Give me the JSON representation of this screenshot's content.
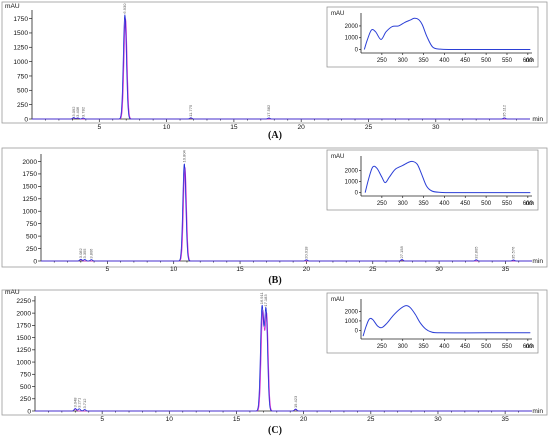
{
  "chart_data": [
    {
      "type": "line",
      "caption": "(A)",
      "ylabel": "mAU",
      "xlabel": "min",
      "xlim": [
        0,
        37
      ],
      "ylim": [
        0,
        1900
      ],
      "x_ticks": [
        5,
        10,
        15,
        20,
        25,
        30
      ],
      "y_ticks": [
        0,
        250,
        500,
        750,
        1000,
        1250,
        1500,
        1750
      ],
      "series": [
        {
          "color": "#1f2bd6",
          "peaks": [
            [
              3.1,
              25
            ],
            [
              3.4,
              20
            ],
            [
              3.8,
              18
            ],
            [
              6.9,
              1820
            ],
            [
              11.8,
              22
            ],
            [
              17.6,
              18
            ],
            [
              35.1,
              20
            ]
          ]
        },
        {
          "color": "#d22ad2",
          "peaks": [
            [
              3.1,
              20
            ],
            [
              3.4,
              15
            ],
            [
              6.95,
              1750
            ],
            [
              11.8,
              15
            ]
          ]
        }
      ],
      "peak_labels": [
        {
          "x": 3.1,
          "text": "3.092"
        },
        {
          "x": 3.4,
          "text": "3.406"
        },
        {
          "x": 3.8,
          "text": "3.782"
        },
        {
          "x": 6.9,
          "text": "6.930"
        },
        {
          "x": 11.8,
          "text": "11.775"
        },
        {
          "x": 17.6,
          "text": "17.582"
        },
        {
          "x": 35.1,
          "text": "35.112"
        }
      ],
      "inset": {
        "ylabel": "mAU",
        "xlabel": "nm",
        "xlim": [
          200,
          610
        ],
        "ylim": [
          -300,
          3100
        ],
        "x_ticks": [
          250,
          300,
          350,
          400,
          450,
          500,
          550,
          600
        ],
        "y_ticks": [
          0,
          1000,
          2000
        ],
        "spectrum": [
          [
            208,
            0
          ],
          [
            215,
            800
          ],
          [
            225,
            1650
          ],
          [
            235,
            1500
          ],
          [
            248,
            850
          ],
          [
            260,
            1500
          ],
          [
            275,
            1950
          ],
          [
            290,
            2000
          ],
          [
            305,
            2300
          ],
          [
            318,
            2500
          ],
          [
            328,
            2650
          ],
          [
            338,
            2550
          ],
          [
            347,
            2100
          ],
          [
            358,
            1100
          ],
          [
            372,
            200
          ],
          [
            390,
            30
          ],
          [
            420,
            0
          ],
          [
            500,
            0
          ],
          [
            606,
            0
          ]
        ]
      }
    },
    {
      "type": "line",
      "caption": "(B)",
      "ylabel": "",
      "xlabel": "min",
      "xlim": [
        0,
        37
      ],
      "ylim": [
        0,
        2150
      ],
      "x_ticks": [
        5,
        10,
        15,
        20,
        25,
        30,
        35
      ],
      "y_ticks": [
        0,
        250,
        500,
        750,
        1000,
        1250,
        1500,
        1750,
        2000
      ],
      "series": [
        {
          "color": "#1f2bd6",
          "peaks": [
            [
              3.0,
              35
            ],
            [
              3.3,
              30
            ],
            [
              3.8,
              28
            ],
            [
              10.8,
              1960
            ],
            [
              20.0,
              25
            ],
            [
              27.2,
              30
            ],
            [
              32.8,
              25
            ],
            [
              35.6,
              22
            ]
          ]
        },
        {
          "color": "#d22ad2",
          "peaks": [
            [
              3.0,
              25
            ],
            [
              10.85,
              1880
            ],
            [
              27.2,
              20
            ]
          ]
        }
      ],
      "peak_labels": [
        {
          "x": 3.0,
          "text": "3.082"
        },
        {
          "x": 3.3,
          "text": "3.355"
        },
        {
          "x": 3.8,
          "text": "3.806"
        },
        {
          "x": 10.8,
          "text": "10.804"
        },
        {
          "x": 20.0,
          "text": "20.018"
        },
        {
          "x": 27.2,
          "text": "27.158"
        },
        {
          "x": 32.8,
          "text": "32.805"
        },
        {
          "x": 35.6,
          "text": "35.576"
        }
      ],
      "inset": {
        "ylabel": "mAU",
        "xlabel": "nm",
        "xlim": [
          200,
          610
        ],
        "ylim": [
          -300,
          3300
        ],
        "x_ticks": [
          250,
          300,
          350,
          400,
          450,
          500,
          550,
          600
        ],
        "y_ticks": [
          0,
          1000,
          2000
        ],
        "spectrum": [
          [
            210,
            0
          ],
          [
            218,
            1200
          ],
          [
            228,
            2300
          ],
          [
            238,
            2200
          ],
          [
            250,
            1400
          ],
          [
            258,
            900
          ],
          [
            268,
            1400
          ],
          [
            282,
            2100
          ],
          [
            300,
            2450
          ],
          [
            315,
            2750
          ],
          [
            325,
            2800
          ],
          [
            335,
            2550
          ],
          [
            345,
            1700
          ],
          [
            357,
            600
          ],
          [
            370,
            150
          ],
          [
            390,
            30
          ],
          [
            430,
            0
          ],
          [
            500,
            0
          ],
          [
            606,
            0
          ]
        ]
      }
    },
    {
      "type": "line",
      "caption": "(C)",
      "ylabel": "mAU",
      "xlabel": "min",
      "xlim": [
        0,
        37
      ],
      "ylim": [
        0,
        2350
      ],
      "x_ticks": [
        5,
        10,
        15,
        20,
        25,
        30,
        35
      ],
      "y_ticks": [
        0,
        250,
        500,
        750,
        1000,
        1250,
        1500,
        1750,
        2000,
        2250
      ],
      "series": [
        {
          "color": "#1f2bd6",
          "peaks": [
            [
              3.0,
              50
            ],
            [
              3.3,
              45
            ],
            [
              3.7,
              30
            ],
            [
              16.9,
              2100
            ],
            [
              17.2,
              2050
            ],
            [
              19.4,
              40
            ]
          ]
        },
        {
          "color": "#d22ad2",
          "peaks": [
            [
              3.0,
              40
            ],
            [
              16.95,
              2000
            ],
            [
              17.25,
              1950
            ],
            [
              19.4,
              30
            ]
          ]
        }
      ],
      "peak_labels": [
        {
          "x": 3.0,
          "text": "3.048"
        },
        {
          "x": 3.3,
          "text": "3.271"
        },
        {
          "x": 3.7,
          "text": "3.712"
        },
        {
          "x": 16.9,
          "text": "16.911"
        },
        {
          "x": 17.2,
          "text": "17.183"
        },
        {
          "x": 19.4,
          "text": "19.423"
        }
      ],
      "inset": {
        "ylabel": "mAU",
        "xlabel": "nm",
        "xlim": [
          200,
          610
        ],
        "ylim": [
          -900,
          3300
        ],
        "x_ticks": [
          250,
          300,
          350,
          400,
          450,
          500,
          550,
          600
        ],
        "y_ticks": [
          0,
          1000,
          2000
        ],
        "spectrum": [
          [
            205,
            -600
          ],
          [
            212,
            400
          ],
          [
            220,
            1200
          ],
          [
            228,
            1150
          ],
          [
            240,
            450
          ],
          [
            250,
            300
          ],
          [
            262,
            750
          ],
          [
            278,
            1600
          ],
          [
            295,
            2300
          ],
          [
            308,
            2600
          ],
          [
            318,
            2400
          ],
          [
            330,
            1700
          ],
          [
            342,
            800
          ],
          [
            355,
            150
          ],
          [
            368,
            -150
          ],
          [
            390,
            -250
          ],
          [
            500,
            -250
          ],
          [
            606,
            -250
          ]
        ]
      }
    }
  ]
}
